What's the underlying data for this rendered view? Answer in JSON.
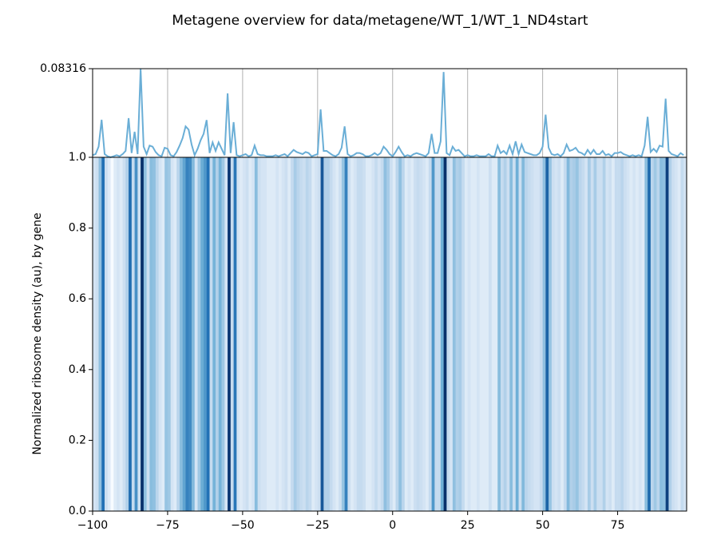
{
  "chart_data": [
    {
      "type": "line",
      "title": "Metagene overview for data/metagene/WT_1/WT_1_ND4start",
      "x": [
        -100,
        -99,
        -98,
        -97,
        -96,
        -95,
        -94,
        -93,
        -92,
        -91,
        -90,
        -89,
        -88,
        -87,
        -86,
        -85,
        -84,
        -83,
        -82,
        -81,
        -80,
        -79,
        -78,
        -77,
        -76,
        -75,
        -74,
        -73,
        -72,
        -71,
        -70,
        -69,
        -68,
        -67,
        -66,
        -65,
        -64,
        -63,
        -62,
        -61,
        -60,
        -59,
        -58,
        -57,
        -56,
        -55,
        -54,
        -53,
        -52,
        -51,
        -50,
        -49,
        -48,
        -47,
        -46,
        -45,
        -44,
        -43,
        -42,
        -41,
        -40,
        -39,
        -38,
        -37,
        -36,
        -35,
        -34,
        -33,
        -32,
        -31,
        -30,
        -29,
        -28,
        -27,
        -26,
        -25,
        -24,
        -23,
        -22,
        -21,
        -20,
        -19,
        -18,
        -17,
        -16,
        -15,
        -14,
        -13,
        -12,
        -11,
        -10,
        -9,
        -8,
        -7,
        -6,
        -5,
        -4,
        -3,
        -2,
        -1,
        0,
        1,
        2,
        3,
        4,
        5,
        6,
        7,
        8,
        9,
        10,
        11,
        12,
        13,
        14,
        15,
        16,
        17,
        18,
        19,
        20,
        21,
        22,
        23,
        24,
        25,
        26,
        27,
        28,
        29,
        30,
        31,
        32,
        33,
        34,
        35,
        36,
        37,
        38,
        39,
        40,
        41,
        42,
        43,
        44,
        45,
        46,
        47,
        48,
        49,
        50,
        51,
        52,
        53,
        54,
        55,
        56,
        57,
        58,
        59,
        60,
        61,
        62,
        63,
        64,
        65,
        66,
        67,
        68,
        69,
        70,
        71,
        72,
        73,
        74,
        75,
        76,
        77,
        78,
        79,
        80,
        81,
        82,
        83,
        84,
        85,
        86,
        87,
        88,
        89,
        90,
        91,
        92,
        93,
        94,
        95,
        96,
        97
      ],
      "series": [
        {
          "color": "#6aaed6",
          "values": [
            0.002,
            0.003,
            0.01,
            0.0352,
            0.003,
            0.001,
            0,
            0.001,
            0.002,
            0.001,
            0.003,
            0.006,
            0.0367,
            0.004,
            0.024,
            0.003,
            0.08316,
            0.01,
            0.003,
            0.011,
            0.01,
            0.005,
            0.002,
            0.001,
            0.009,
            0.008,
            0.002,
            0.001,
            0.005,
            0.011,
            0.018,
            0.029,
            0.026,
            0.012,
            0.002,
            0.008,
            0.016,
            0.022,
            0.035,
            0.004,
            0.014,
            0.006,
            0.014,
            0.008,
            0.002,
            0.06,
            0.004,
            0.033,
            0.002,
            0.001,
            0.002,
            0.003,
            0.001,
            0.002,
            0.011,
            0.003,
            0.002,
            0.002,
            0.001,
            0.001,
            0.001,
            0.002,
            0.001,
            0.002,
            0.003,
            0.001,
            0.004,
            0.007,
            0.005,
            0.004,
            0.003,
            0.005,
            0.004,
            0.001,
            0.002,
            0.003,
            0.045,
            0.006,
            0.006,
            0.004,
            0.002,
            0.001,
            0.003,
            0.009,
            0.029,
            0.003,
            0.001,
            0.002,
            0.004,
            0.004,
            0.003,
            0.001,
            0.001,
            0.002,
            0.004,
            0.002,
            0.004,
            0.01,
            0.007,
            0.003,
            0.001,
            0.005,
            0.01,
            0.005,
            0.001,
            0.002,
            0.001,
            0.003,
            0.004,
            0.003,
            0.002,
            0.001,
            0.004,
            0.022,
            0.004,
            0.004,
            0.015,
            0.08,
            0.004,
            0.002,
            0.01,
            0.006,
            0.007,
            0.004,
            0.001,
            0.002,
            0.001,
            0.001,
            0.002,
            0.001,
            0.001,
            0.001,
            0.003,
            0.001,
            0.001,
            0.011,
            0.004,
            0.006,
            0.003,
            0.011,
            0.003,
            0.015,
            0.003,
            0.012,
            0.005,
            0.004,
            0.003,
            0.002,
            0.002,
            0.004,
            0.01,
            0.04,
            0.009,
            0.003,
            0.002,
            0.003,
            0.001,
            0.004,
            0.012,
            0.006,
            0.007,
            0.009,
            0.005,
            0.004,
            0.002,
            0.007,
            0.003,
            0.007,
            0.003,
            0.003,
            0.006,
            0.002,
            0.003,
            0.001,
            0.004,
            0.004,
            0.005,
            0.003,
            0.002,
            0.001,
            0.002,
            0.001,
            0.002,
            0.001,
            0.011,
            0.038,
            0.005,
            0.008,
            0.005,
            0.011,
            0.01,
            0.055,
            0.006,
            0.003,
            0.002,
            0.001,
            0.004,
            0.002
          ]
        }
      ],
      "xlim": [
        -100,
        98
      ],
      "ylim": [
        0,
        0.08316
      ],
      "yticks": [
        0.08316
      ],
      "grid": true
    },
    {
      "type": "heatmap",
      "ylabel": "Normalized ribosome density (au), by gene",
      "colormap": "Blues",
      "xlim": [
        -100,
        98
      ],
      "xticks": [
        -100,
        -75,
        -50,
        -25,
        0,
        25,
        50,
        75
      ],
      "ylim": [
        0,
        1
      ],
      "yticks": [
        {
          "value": 0,
          "label": "0.0"
        },
        0.2,
        0.4,
        0.6,
        0.8,
        {
          "value": 1,
          "label": "1.0"
        }
      ]
    }
  ]
}
